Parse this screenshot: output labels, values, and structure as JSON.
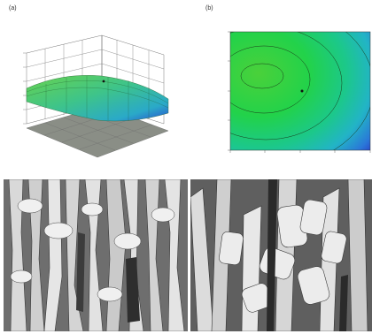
{
  "panels": {
    "a": {
      "label": "(a)"
    },
    "b": {
      "label": "(b)"
    }
  },
  "colors": {
    "surface_high": "#58c85a",
    "surface_mid": "#2fb8a8",
    "surface_low": "#2a4fd0",
    "contour_bg": "#22d24a",
    "floor_grey": "#888c86",
    "sem_background": "#6a6a6a",
    "sem_fiber": "#e4e4e4"
  }
}
